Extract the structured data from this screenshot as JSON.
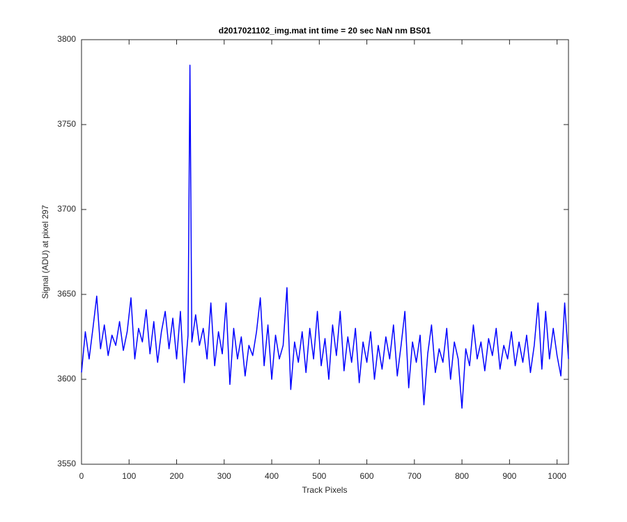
{
  "chart_data": {
    "type": "line",
    "title": "d2017021102_img.mat int time = 20 sec  NaN nm BS01",
    "xlabel": "Track Pixels",
    "ylabel": "Signal (ADU) at pixel 297",
    "xlim": [
      0,
      1024
    ],
    "ylim": [
      3550,
      3800
    ],
    "xticks": [
      0,
      100,
      200,
      300,
      400,
      500,
      600,
      700,
      800,
      900,
      1000
    ],
    "yticks": [
      3550,
      3600,
      3650,
      3700,
      3750,
      3800
    ],
    "series": [
      {
        "color": "#0000ff",
        "x": [
          0,
          8,
          16,
          24,
          32,
          40,
          48,
          56,
          64,
          72,
          80,
          88,
          96,
          104,
          112,
          120,
          128,
          136,
          144,
          152,
          160,
          168,
          176,
          184,
          192,
          200,
          208,
          216,
          224,
          228,
          232,
          240,
          248,
          256,
          264,
          272,
          280,
          288,
          296,
          304,
          312,
          320,
          328,
          336,
          344,
          352,
          360,
          368,
          376,
          384,
          392,
          400,
          408,
          416,
          424,
          432,
          440,
          448,
          456,
          464,
          472,
          480,
          488,
          496,
          504,
          512,
          520,
          528,
          536,
          544,
          552,
          560,
          568,
          576,
          584,
          592,
          600,
          608,
          616,
          624,
          632,
          640,
          648,
          656,
          664,
          672,
          680,
          688,
          696,
          704,
          712,
          720,
          728,
          736,
          744,
          752,
          760,
          768,
          776,
          784,
          792,
          800,
          808,
          816,
          824,
          832,
          840,
          848,
          856,
          864,
          872,
          880,
          888,
          896,
          904,
          912,
          920,
          928,
          936,
          944,
          952,
          960,
          968,
          976,
          984,
          992,
          1000,
          1008,
          1016,
          1024
        ],
        "values": [
          3604,
          3628,
          3612,
          3630,
          3649,
          3618,
          3632,
          3614,
          3626,
          3620,
          3634,
          3617,
          3628,
          3648,
          3612,
          3630,
          3622,
          3641,
          3615,
          3634,
          3610,
          3628,
          3640,
          3618,
          3636,
          3612,
          3640,
          3598,
          3626,
          3785,
          3622,
          3638,
          3620,
          3630,
          3612,
          3645,
          3608,
          3628,
          3615,
          3645,
          3597,
          3630,
          3612,
          3625,
          3602,
          3620,
          3614,
          3628,
          3648,
          3608,
          3632,
          3600,
          3626,
          3612,
          3620,
          3654,
          3594,
          3622,
          3610,
          3628,
          3604,
          3630,
          3612,
          3640,
          3608,
          3624,
          3600,
          3632,
          3614,
          3640,
          3605,
          3625,
          3610,
          3630,
          3598,
          3622,
          3610,
          3628,
          3600,
          3620,
          3606,
          3625,
          3612,
          3632,
          3602,
          3620,
          3640,
          3595,
          3622,
          3610,
          3626,
          3585,
          3615,
          3632,
          3604,
          3618,
          3610,
          3630,
          3600,
          3622,
          3612,
          3583,
          3618,
          3608,
          3632,
          3612,
          3622,
          3605,
          3624,
          3614,
          3630,
          3606,
          3620,
          3612,
          3628,
          3608,
          3622,
          3610,
          3626,
          3604,
          3620,
          3645,
          3606,
          3640,
          3612,
          3630,
          3614,
          3602,
          3645,
          3612
        ]
      }
    ]
  }
}
